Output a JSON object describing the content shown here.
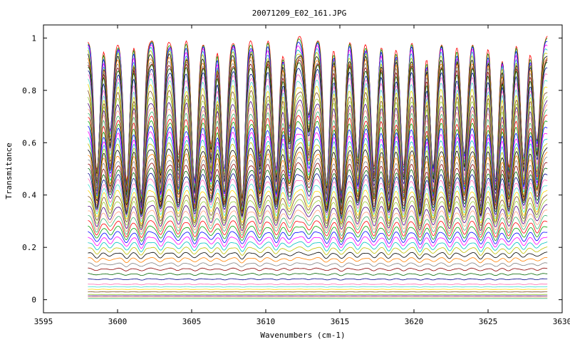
{
  "chart_data": {
    "type": "line",
    "title": "20071209_E02_161.JPG",
    "xlabel": "Wavenumbers (cm-1)",
    "ylabel": "Transmitance",
    "xlim": [
      3595,
      3630
    ],
    "ylim": [
      -0.05,
      1.05
    ],
    "data_x_range": [
      3598,
      3629
    ],
    "xticks": [
      3595,
      3600,
      3605,
      3610,
      3615,
      3620,
      3625,
      3630
    ],
    "yticks": [
      0,
      0.2,
      0.4,
      0.6,
      0.8,
      1
    ],
    "xtick_labels": [
      "3595",
      "3600",
      "3605",
      "3610",
      "3615",
      "3620",
      "3625",
      "3630"
    ],
    "ytick_labels": [
      "0",
      "0.2",
      "0.4",
      "0.6",
      "0.8",
      "1"
    ],
    "grid": false,
    "legend": "none",
    "series_count": 60,
    "series_baselines": [
      1.0,
      0.99,
      0.98,
      0.97,
      0.96,
      0.95,
      0.94,
      0.93,
      0.92,
      0.91,
      0.9,
      0.88,
      0.86,
      0.84,
      0.82,
      0.8,
      0.78,
      0.76,
      0.74,
      0.72,
      0.7,
      0.68,
      0.66,
      0.64,
      0.62,
      0.6,
      0.58,
      0.56,
      0.54,
      0.52,
      0.5,
      0.48,
      0.46,
      0.44,
      0.42,
      0.4,
      0.38,
      0.36,
      0.34,
      0.32,
      0.3,
      0.28,
      0.26,
      0.24,
      0.22,
      0.2,
      0.18,
      0.16,
      0.14,
      0.12,
      0.1,
      0.08,
      0.06,
      0.05,
      0.04,
      0.03,
      0.02,
      0.015,
      0.01,
      0.005
    ],
    "absorption_lines_cm1": [
      3598.6,
      3599.5,
      3600.6,
      3601.6,
      3602.9,
      3604.1,
      3605.2,
      3606.3,
      3607.2,
      3608.4,
      3609.6,
      3610.7,
      3611.6,
      3612.9,
      3614.1,
      3615.1,
      3616.2,
      3617.3,
      3618.3,
      3619.3,
      3620.4,
      3621.3,
      3622.4,
      3623.4,
      3624.5,
      3625.5,
      3626.4,
      3627.4,
      3628.3
    ],
    "absorption_line_depths": [
      0.5,
      0.35,
      0.55,
      0.6,
      0.5,
      0.45,
      0.55,
      0.4,
      0.5,
      0.6,
      0.45,
      0.5,
      0.35,
      0.3,
      0.55,
      0.6,
      0.45,
      0.5,
      0.55,
      0.5,
      0.6,
      0.5,
      0.55,
      0.45,
      0.6,
      0.55,
      0.5,
      0.45,
      0.4
    ],
    "colors": [
      "#ff0000",
      "#00a000",
      "#0000ff",
      "#ff00ff",
      "#00c0c0",
      "#c0c000",
      "#000000",
      "#ff8000",
      "#808080",
      "#8b0000",
      "#006400",
      "#00008b",
      "#ff69b4",
      "#40e0d0",
      "#ffd700",
      "#7f4f1f",
      "#9acd32",
      "#4b0082",
      "#ffa07a",
      "#3cb371"
    ]
  }
}
